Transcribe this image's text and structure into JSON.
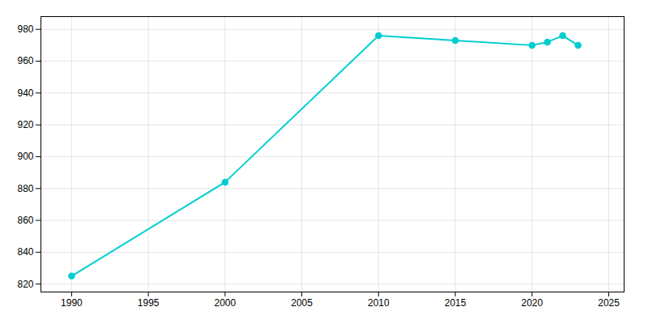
{
  "chart_data": {
    "type": "line",
    "x": [
      1990,
      2000,
      2010,
      2015,
      2020,
      2021,
      2022,
      2023
    ],
    "values": [
      825,
      884,
      976,
      973,
      970,
      972,
      976,
      970
    ],
    "color": "#00CED1",
    "marker": "circle",
    "line_style": "solid",
    "xlim": [
      1988,
      2026
    ],
    "ylim": [
      815,
      988
    ],
    "xticks": [
      1990,
      1995,
      2000,
      2005,
      2010,
      2015,
      2020,
      2025
    ],
    "yticks": [
      820,
      840,
      860,
      880,
      900,
      920,
      940,
      960,
      980
    ],
    "grid": true
  }
}
